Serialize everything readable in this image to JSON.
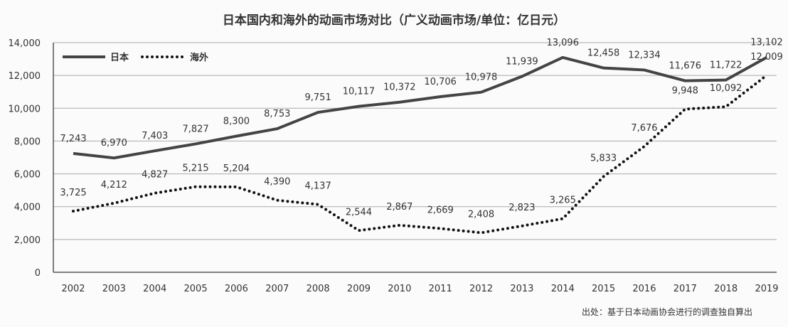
{
  "chart_data": {
    "type": "line",
    "title": "日本国内和海外的动画市场对比（广义动画市场/单位：亿日元）",
    "xlabel": "",
    "ylabel": "",
    "x": [
      "2002",
      "2003",
      "2004",
      "2005",
      "2006",
      "2007",
      "2008",
      "2009",
      "2010",
      "2011",
      "2012",
      "2013",
      "2014",
      "2015",
      "2016",
      "2017",
      "2018",
      "2019"
    ],
    "ylim": [
      0,
      14000
    ],
    "yticks": [
      0,
      2000,
      4000,
      6000,
      8000,
      10000,
      12000,
      14000
    ],
    "ytick_labels": [
      "0",
      "2,000",
      "4,000",
      "6,000",
      "8,000",
      "10,000",
      "12,000",
      "14,000"
    ],
    "grid": "horizontal",
    "legend_position": "top-left",
    "series": [
      {
        "name": "日本",
        "style": "solid",
        "color": "#444444",
        "values": [
          7243,
          6970,
          7403,
          7827,
          8300,
          8753,
          9751,
          10117,
          10372,
          10706,
          10978,
          11939,
          13096,
          12458,
          12334,
          11676,
          11722,
          13102
        ]
      },
      {
        "name": "海外",
        "style": "dotted",
        "color": "#111111",
        "values": [
          3725,
          4212,
          4827,
          5215,
          5204,
          4390,
          4137,
          2544,
          2867,
          2669,
          2408,
          2823,
          3265,
          5833,
          7676,
          9948,
          10092,
          12009
        ]
      }
    ],
    "source": "出处：基于日本动画协会进行的调查独自算出"
  }
}
